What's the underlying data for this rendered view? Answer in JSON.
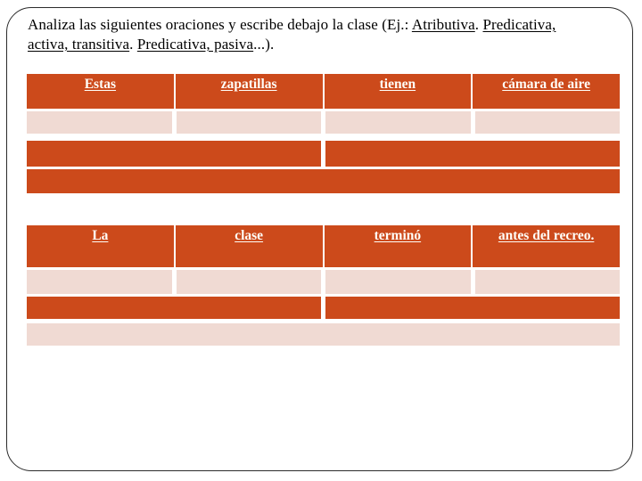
{
  "colors": {
    "background": "#FFFFFF",
    "frame_border": "#2B2B2B",
    "heading_text": "#000000",
    "cell_orange": "#CC4A1B",
    "cell_pink": "#F0DAD3",
    "cell_text": "#FFFEF8"
  },
  "heading": {
    "segments": [
      {
        "text": "Analiza las siguientes oraciones y escribe debajo la clase (Ej.: ",
        "underline": false
      },
      {
        "text": "Atributiva",
        "underline": true
      },
      {
        "text": ". ",
        "underline": false
      },
      {
        "text": "Predicativa,",
        "underline": true
      },
      {
        "text": "activa, transitiva",
        "underline": true
      },
      {
        "text": ". ",
        "underline": false
      },
      {
        "text": "Predicativa, pasiva",
        "underline": true
      },
      {
        "text": "...).",
        "underline": false
      }
    ]
  },
  "sentence_tables": [
    {
      "words": [
        "Estas",
        "zapatillas",
        "tienen",
        "cámara de aire"
      ]
    },
    {
      "words": [
        "La",
        "clase",
        "terminó",
        "antes del recreo."
      ]
    }
  ]
}
